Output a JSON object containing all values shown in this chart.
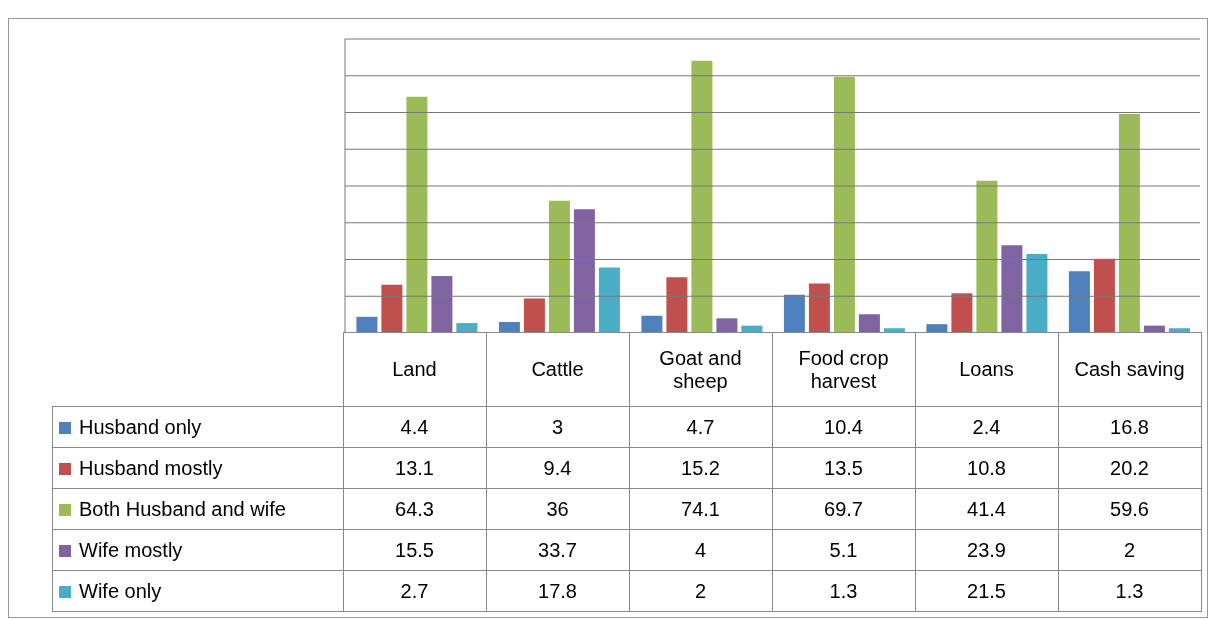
{
  "chart_data": {
    "type": "bar",
    "categories": [
      "Land",
      "Cattle",
      "Goat and sheep",
      "Food crop harvest",
      "Loans",
      "Cash saving"
    ],
    "series": [
      {
        "name": "Husband only",
        "color": "#4f81bd",
        "values": [
          4.4,
          3,
          4.7,
          10.4,
          2.4,
          16.8
        ]
      },
      {
        "name": "Husband mostly",
        "color": "#c0504d",
        "values": [
          13.1,
          9.4,
          15.2,
          13.5,
          10.8,
          20.2
        ]
      },
      {
        "name": "Both Husband and wife",
        "color": "#9bbb59",
        "values": [
          64.3,
          36,
          74.1,
          69.7,
          41.4,
          59.6
        ]
      },
      {
        "name": "Wife mostly",
        "color": "#8064a2",
        "values": [
          15.5,
          33.7,
          4,
          5.1,
          23.9,
          2
        ]
      },
      {
        "name": "Wife only",
        "color": "#4bacc6",
        "values": [
          2.7,
          17.8,
          2,
          1.3,
          21.5,
          1.3
        ]
      }
    ],
    "ylim": [
      0,
      80
    ],
    "yticks": [
      {
        "value": 10,
        "label": null
      },
      {
        "value": 20,
        "label": null
      },
      {
        "value": 30,
        "label": null
      },
      {
        "value": 40,
        "label": null
      },
      {
        "value": 50,
        "label": null
      },
      {
        "value": 60,
        "label": null
      },
      {
        "value": 70,
        "label": null
      },
      {
        "value": 80,
        "label": null
      }
    ],
    "grid": "y",
    "legend": "bottom left",
    "data_labels": true,
    "tick_labels": "x"
  }
}
